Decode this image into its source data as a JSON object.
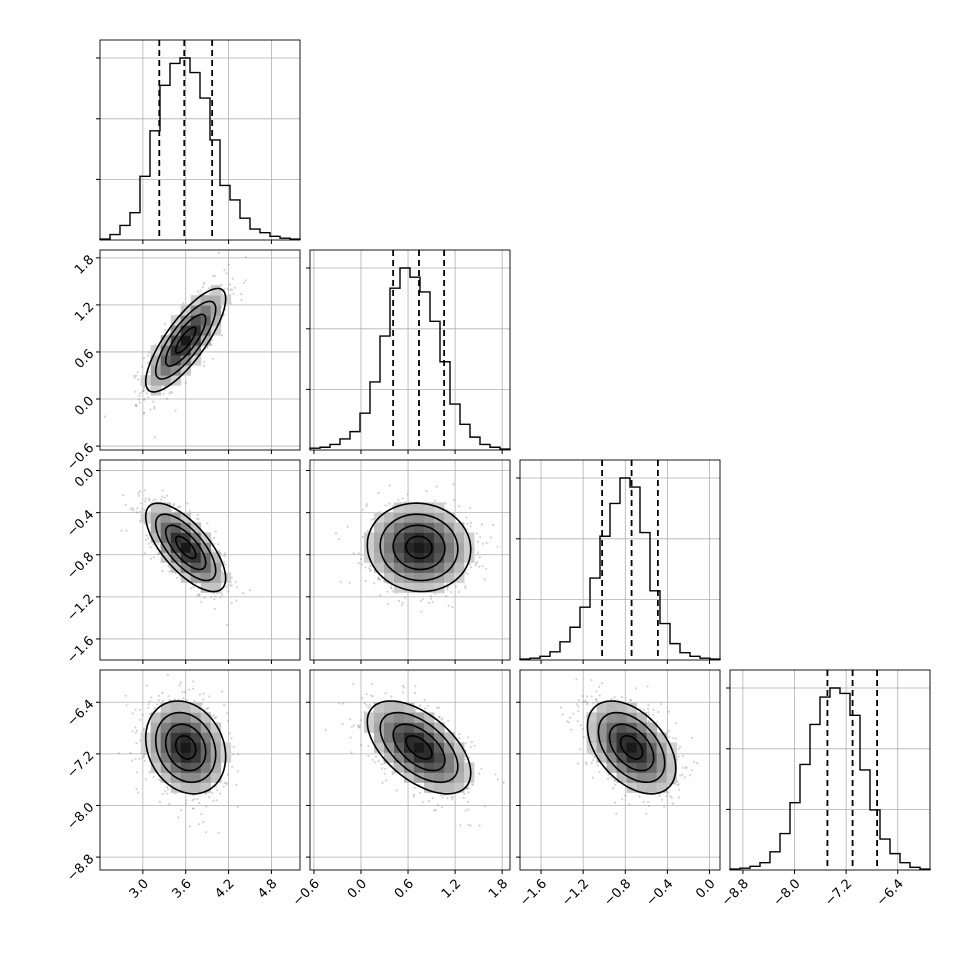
{
  "chart_data": {
    "type": "corner",
    "grid": true,
    "colors": {
      "line": "#000000",
      "points": "#808080",
      "grid": "#b0b0b0",
      "background": "#ffffff"
    },
    "parameters": [
      {
        "id": "p0",
        "range": [
          2.4,
          5.2
        ],
        "ticks": [
          3.0,
          3.6,
          4.2,
          4.8
        ],
        "tick_labels": [
          "3.0",
          "3.6",
          "4.2",
          "4.8"
        ]
      },
      {
        "id": "p1",
        "range": [
          -0.65,
          1.9
        ],
        "ticks": [
          -0.6,
          0.0,
          0.6,
          1.2,
          1.8
        ],
        "tick_labels": [
          "−0.6",
          "0.0",
          "0.6",
          "1.2",
          "1.8"
        ]
      },
      {
        "id": "p2",
        "range": [
          -1.8,
          0.1
        ],
        "ticks": [
          -1.6,
          -1.2,
          -0.8,
          -0.4,
          0.0
        ],
        "tick_labels": [
          "−1.6",
          "−1.2",
          "−0.8",
          "−0.4",
          "0.0"
        ]
      },
      {
        "id": "p3",
        "range": [
          -9.0,
          -5.9
        ],
        "ticks": [
          -8.8,
          -8.0,
          -7.2,
          -6.4
        ],
        "tick_labels": [
          "−8.8",
          "−8.0",
          "−7.2",
          "−6.4"
        ]
      }
    ],
    "histograms": [
      {
        "param": 0,
        "edges_range": [
          2.4,
          5.2
        ],
        "counts": [
          0.005,
          0.03,
          0.08,
          0.15,
          0.35,
          0.6,
          0.85,
          0.97,
          1.0,
          0.92,
          0.78,
          0.55,
          0.3,
          0.22,
          0.12,
          0.06,
          0.04,
          0.02,
          0.01,
          0.005
        ],
        "quantiles": [
          3.23,
          3.58,
          3.97
        ]
      },
      {
        "param": 1,
        "edges_range": [
          -0.65,
          1.9
        ],
        "counts": [
          0.01,
          0.015,
          0.03,
          0.06,
          0.1,
          0.2,
          0.37,
          0.62,
          0.88,
          0.99,
          0.94,
          0.86,
          0.7,
          0.48,
          0.25,
          0.14,
          0.07,
          0.03,
          0.015,
          0.005
        ],
        "quantiles": [
          0.41,
          0.74,
          1.06
        ]
      },
      {
        "param": 2,
        "edges_range": [
          -1.8,
          0.1
        ],
        "counts": [
          0.005,
          0.01,
          0.02,
          0.045,
          0.1,
          0.18,
          0.29,
          0.45,
          0.68,
          0.86,
          1.0,
          0.95,
          0.7,
          0.38,
          0.2,
          0.09,
          0.04,
          0.02,
          0.01,
          0.005
        ],
        "quantiles": [
          -1.02,
          -0.74,
          -0.49
        ]
      },
      {
        "param": 3,
        "edges_range": [
          -9.0,
          -5.9
        ],
        "counts": [
          0.005,
          0.01,
          0.02,
          0.04,
          0.1,
          0.2,
          0.37,
          0.58,
          0.8,
          0.95,
          1.0,
          0.97,
          0.85,
          0.55,
          0.33,
          0.17,
          0.09,
          0.04,
          0.015,
          0.005
        ],
        "quantiles": [
          -7.49,
          -7.1,
          -6.72
        ]
      }
    ],
    "joint": [
      {
        "row": 1,
        "col": 0,
        "mean": [
          3.6,
          0.75
        ],
        "sd": [
          0.28,
          0.33
        ],
        "corr": 0.8
      },
      {
        "row": 2,
        "col": 0,
        "mean": [
          3.6,
          -0.73
        ],
        "sd": [
          0.28,
          0.21
        ],
        "corr": -0.7
      },
      {
        "row": 2,
        "col": 1,
        "mean": [
          0.74,
          -0.73
        ],
        "sd": [
          0.33,
          0.21
        ],
        "corr": -0.05
      },
      {
        "row": 3,
        "col": 0,
        "mean": [
          3.6,
          -7.1
        ],
        "sd": [
          0.28,
          0.36
        ],
        "corr": -0.2
      },
      {
        "row": 3,
        "col": 1,
        "mean": [
          0.74,
          -7.1
        ],
        "sd": [
          0.33,
          0.36
        ],
        "corr": -0.55
      },
      {
        "row": 3,
        "col": 2,
        "mean": [
          -0.74,
          -7.1
        ],
        "sd": [
          0.21,
          0.36
        ],
        "corr": -0.45
      }
    ],
    "contour_levels_sigma": [
      0.5,
      1.0,
      1.5,
      2.0
    ]
  }
}
